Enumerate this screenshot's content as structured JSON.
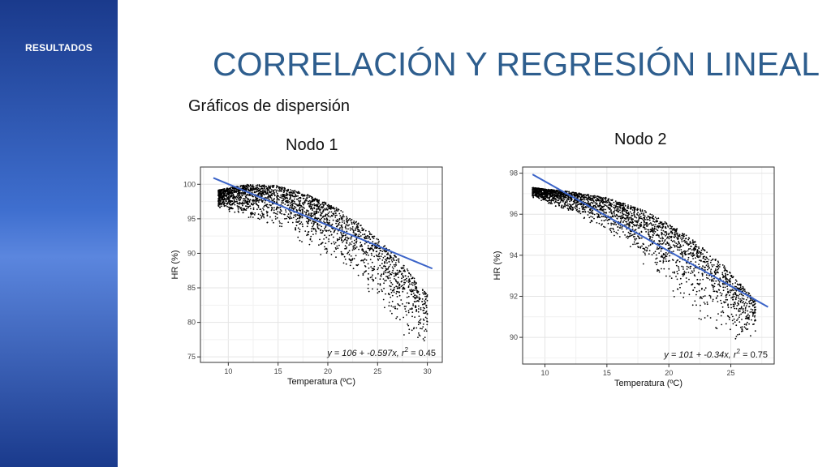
{
  "sidebar": {
    "section_label": "RESULTADOS",
    "colors": {
      "top": "#1a3a8c",
      "middle": "#5b86de"
    }
  },
  "header": {
    "title": "CORRELACIÓN Y REGRESIÓN LINEAL",
    "title_color": "#2e5e8e",
    "subtitle": "Gráficos de dispersión"
  },
  "regression_line_color": "#3a63c8",
  "chart_data": [
    {
      "type": "scatter",
      "title": "Nodo 1",
      "xlabel": "Temperatura (ºC)",
      "ylabel": "HR (%)",
      "xlim": [
        7.2,
        31.5
      ],
      "ylim": [
        74.2,
        102.5
      ],
      "xticks": [
        10,
        15,
        20,
        25,
        30
      ],
      "yticks": [
        75,
        80,
        85,
        90,
        95,
        100
      ],
      "grid": true,
      "regression": {
        "intercept": 106,
        "slope": -0.597,
        "x_range": [
          8.5,
          30.5
        ]
      },
      "annotation": {
        "eq": "y = 106 + -0.597x",
        "r2_label": "r",
        "r2_value": " = 0.45"
      },
      "envelope": {
        "x": [
          9,
          12,
          15,
          18,
          21,
          24,
          27,
          30
        ],
        "upper": [
          99.2,
          100,
          99.8,
          98.5,
          96.5,
          93.5,
          89.5,
          84
        ],
        "lower": [
          96.5,
          94.5,
          93,
          91,
          88,
          84,
          79,
          75
        ]
      }
    },
    {
      "type": "scatter",
      "title": "Nodo 2",
      "xlabel": "Temperatura (ºC)",
      "ylabel": "HR (%)",
      "xlim": [
        8.2,
        28.5
      ],
      "ylim": [
        88.7,
        98.3
      ],
      "xticks": [
        10,
        15,
        20,
        25
      ],
      "yticks": [
        90,
        92,
        94,
        96,
        98
      ],
      "grid": true,
      "regression": {
        "intercept": 101,
        "slope": -0.34,
        "x_range": [
          9,
          28
        ]
      },
      "annotation": {
        "eq": "y = 101 + -0.34x",
        "r2_label": "r",
        "r2_value": " = 0.75"
      },
      "envelope": {
        "x": [
          9,
          12,
          15,
          18,
          21,
          24,
          27
        ],
        "upper": [
          97.3,
          97.1,
          96.8,
          96.2,
          95.2,
          93.8,
          91.8
        ],
        "lower": [
          96.8,
          96,
          95,
          93.5,
          91.5,
          90,
          89.5
        ]
      }
    }
  ]
}
